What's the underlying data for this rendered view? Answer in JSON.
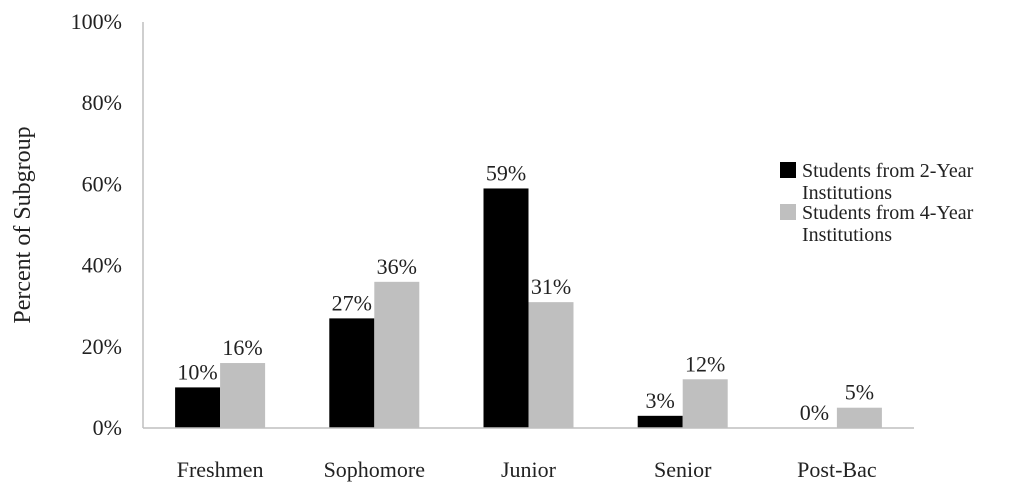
{
  "chart_data": {
    "type": "bar",
    "title": "",
    "xlabel": "",
    "ylabel": "Percent of Subgroup",
    "ylim": [
      0,
      100
    ],
    "yticks": [
      "0%",
      "20%",
      "40%",
      "60%",
      "80%",
      "100%"
    ],
    "grid": false,
    "legend_position": "right",
    "categories": [
      "Freshmen",
      "Sophomore",
      "Junior",
      "Senior",
      "Post-Bac"
    ],
    "series": [
      {
        "name": "Students from 2-Year Institutions",
        "legend_lines": [
          "Students from 2-Year",
          "Institutions"
        ],
        "color": "#000000",
        "values": [
          10,
          27,
          59,
          3,
          0
        ],
        "labels": [
          "10%",
          "27%",
          "59%",
          "3%",
          "0%"
        ]
      },
      {
        "name": "Students from 4-Year Institutions",
        "legend_lines": [
          "Students from 4-Year",
          "Institutions"
        ],
        "color": "#bfbfbf",
        "values": [
          16,
          36,
          31,
          12,
          5
        ],
        "labels": [
          "16%",
          "36%",
          "31%",
          "12%",
          "5%"
        ]
      }
    ]
  }
}
